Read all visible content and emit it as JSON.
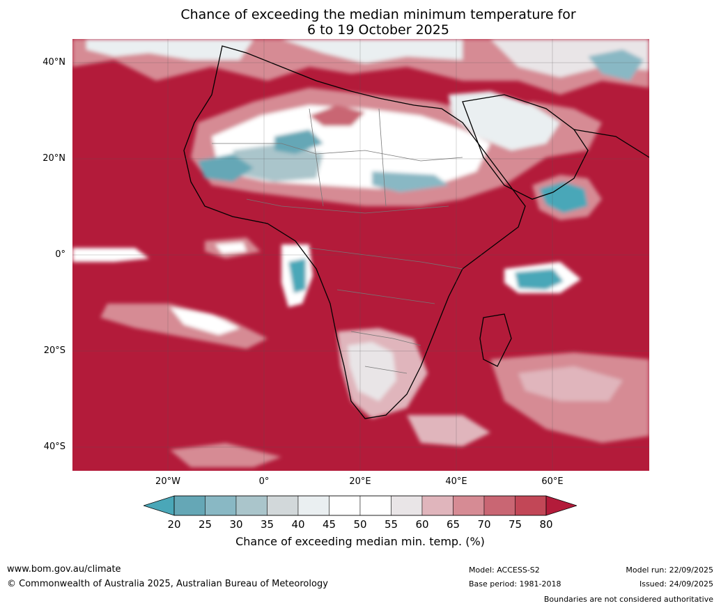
{
  "title_line1": "Chance of exceeding the median minimum temperature for",
  "title_line2": "6 to 19 October 2025",
  "lat_labels": [
    "40°N",
    "20°N",
    "0°",
    "20°S",
    "40°S"
  ],
  "lon_labels": [
    "20°W",
    "0°",
    "20°E",
    "40°E",
    "60°E"
  ],
  "colorbar": {
    "ticks": [
      "20",
      "25",
      "30",
      "35",
      "40",
      "45",
      "50",
      "55",
      "60",
      "65",
      "70",
      "75",
      "80"
    ],
    "colors": [
      "#4aa7b8",
      "#65a7b6",
      "#89b8c4",
      "#aac5cb",
      "#d2d8da",
      "#eaeff1",
      "#ffffff",
      "#ffffff",
      "#e9e5e7",
      "#e0b5bc",
      "#d68b94",
      "#c96673",
      "#c24757",
      "#b31b3a"
    ],
    "label": "Chance of exceeding median min. temp. (%)"
  },
  "footer": {
    "website": "www.bom.gov.au/climate",
    "copyright": "© Commonwealth of Australia 2025, Australian Bureau of Meteorology",
    "model": "Model: ACCESS-S2",
    "base_period": "Base period: 1981-2018",
    "model_run": "Model run: 22/09/2025",
    "issued": "Issued: 24/09/2025",
    "boundaries": "Boundaries are not considered authoritative"
  }
}
